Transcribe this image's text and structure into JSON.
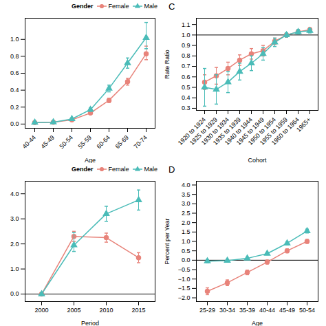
{
  "chart_data": [
    {
      "type": "line",
      "xlabel": "Age",
      "categories": [
        "40-44",
        "45-49",
        "50-54",
        "55-59",
        "60-64",
        "65-69",
        "70-74"
      ],
      "series": [
        {
          "name": "Female",
          "color": "#E8837A",
          "marker": "circle",
          "values": [
            0.018,
            0.022,
            0.05,
            0.13,
            0.28,
            0.5,
            0.83
          ],
          "yerr_lo": [
            0.004,
            0.004,
            0.008,
            0.015,
            0.025,
            0.04,
            0.07
          ],
          "yerr_hi": [
            0.004,
            0.004,
            0.008,
            0.015,
            0.025,
            0.04,
            0.09
          ]
        },
        {
          "name": "Male",
          "color": "#4ABCB8",
          "marker": "triangle",
          "values": [
            0.018,
            0.022,
            0.06,
            0.17,
            0.42,
            0.72,
            1.02
          ],
          "yerr_lo": [
            0.004,
            0.004,
            0.01,
            0.02,
            0.04,
            0.06,
            0.13
          ],
          "yerr_hi": [
            0.004,
            0.004,
            0.01,
            0.02,
            0.04,
            0.06,
            0.18
          ]
        }
      ],
      "ylim": [
        -0.05,
        1.25
      ],
      "yticks": [
        {
          "value": 0,
          "label": "0.0"
        },
        0.2,
        0.4,
        0.6,
        0.8,
        {
          "value": 1,
          "label": "1.0"
        }
      ],
      "grid": false,
      "legend": "right",
      "legend_title": "Gender"
    },
    {
      "type": "line",
      "title": "C",
      "xlabel": "Cohort",
      "ylabel": "Rate Ratio",
      "categories": [
        "1920 to 1924",
        "1925 to 1929",
        "1930 to 1934",
        "1935 to 1939",
        "1940 to 1944",
        "1945 to 1949",
        "1950 to 1954",
        "1955 to 1959",
        "1960 to 1964",
        "1965+"
      ],
      "series": [
        {
          "name": "Female",
          "color": "#E8837A",
          "marker": "circle",
          "values": [
            0.55,
            0.61,
            0.68,
            0.76,
            0.82,
            0.85,
            0.94,
            1.0,
            1.03,
            1.05
          ],
          "yerr_lo": [
            0.07,
            0.08,
            0.06,
            0.05,
            0.05,
            0.05,
            0.03,
            0.02,
            0.02,
            0.02
          ],
          "yerr_hi": [
            0.07,
            0.08,
            0.06,
            0.05,
            0.05,
            0.05,
            0.03,
            0.02,
            0.02,
            0.02
          ]
        },
        {
          "name": "Male",
          "color": "#4ABCB8",
          "marker": "triangle",
          "values": [
            0.5,
            0.48,
            0.55,
            0.65,
            0.73,
            0.82,
            0.93,
            1.0,
            1.03,
            1.04
          ],
          "yerr_lo": [
            0.18,
            0.14,
            0.1,
            0.08,
            0.07,
            0.06,
            0.04,
            0.02,
            0.02,
            0.02
          ],
          "yerr_hi": [
            0.18,
            0.14,
            0.1,
            0.08,
            0.07,
            0.06,
            0.04,
            0.02,
            0.02,
            0.02
          ]
        }
      ],
      "hline": 1.0,
      "ylim": [
        0.28,
        1.16
      ],
      "yticks": [
        0.3,
        0.4,
        0.5,
        0.6,
        0.7,
        0.8,
        0.9,
        {
          "value": 1,
          "label": "1.0"
        },
        1.1
      ],
      "grid": false
    },
    {
      "type": "line",
      "xlabel": "Period",
      "categories": [
        "2000",
        "2005",
        "2010",
        "2015"
      ],
      "series": [
        {
          "name": "Female",
          "color": "#E8837A",
          "marker": "circle",
          "values": [
            0.0,
            2.3,
            2.25,
            1.45
          ],
          "yerr_lo": [
            0.05,
            0.2,
            0.18,
            0.2
          ],
          "yerr_hi": [
            0.05,
            0.2,
            0.18,
            0.2
          ]
        },
        {
          "name": "Male",
          "color": "#4ABCB8",
          "marker": "triangle",
          "values": [
            0.0,
            1.95,
            3.2,
            3.75
          ],
          "yerr_lo": [
            0.05,
            0.25,
            0.3,
            0.4
          ],
          "yerr_hi": [
            0.05,
            0.5,
            0.3,
            0.4
          ]
        }
      ],
      "hline": 0,
      "ylim": [
        -0.3,
        4.5
      ],
      "yticks": [
        {
          "value": 0,
          "label": "0.0"
        },
        {
          "value": 1,
          "label": "1.0"
        },
        {
          "value": 2,
          "label": "2.0"
        },
        {
          "value": 3,
          "label": "3.0"
        },
        {
          "value": 4,
          "label": "4.0"
        }
      ],
      "grid": false,
      "legend": "right",
      "legend_title": "Gender"
    },
    {
      "type": "line",
      "title": "D",
      "xlabel": "Age",
      "ylabel": "Percent per Year",
      "categories": [
        "25-29",
        "30-34",
        "35-39",
        "40-44",
        "45-49",
        "50-54"
      ],
      "series": [
        {
          "name": "Female",
          "color": "#E8837A",
          "marker": "circle",
          "values": [
            -1.65,
            -1.2,
            -0.65,
            -0.1,
            0.5,
            1.0
          ],
          "yerr_lo": [
            0.18,
            0.15,
            0.12,
            0.1,
            0.1,
            0.1
          ],
          "yerr_hi": [
            0.18,
            0.15,
            0.12,
            0.1,
            0.1,
            0.1
          ]
        },
        {
          "name": "Male",
          "color": "#4ABCB8",
          "marker": "triangle",
          "values": [
            -0.05,
            -0.02,
            0.1,
            0.35,
            0.9,
            1.55
          ],
          "yerr_lo": [
            0.08,
            0.06,
            0.06,
            0.06,
            0.08,
            0.1
          ],
          "yerr_hi": [
            0.08,
            0.06,
            0.06,
            0.06,
            0.08,
            0.1
          ]
        }
      ],
      "hline": 0.0,
      "ylim": [
        -2.2,
        4.2
      ],
      "yticks": [
        {
          "value": -2,
          "label": "−2.0"
        },
        {
          "value": -1.5,
          "label": "−1.5"
        },
        {
          "value": -1,
          "label": "−1.0"
        },
        {
          "value": -0.5,
          "label": "−0.5"
        },
        {
          "value": 0,
          "label": "0.0"
        },
        0.5,
        {
          "value": 1,
          "label": "1.0"
        },
        1.5,
        {
          "value": 2,
          "label": "2.0"
        },
        2.5,
        {
          "value": 3,
          "label": "3.0"
        },
        3.5,
        {
          "value": 4,
          "label": "4.0"
        }
      ],
      "grid": false
    }
  ]
}
